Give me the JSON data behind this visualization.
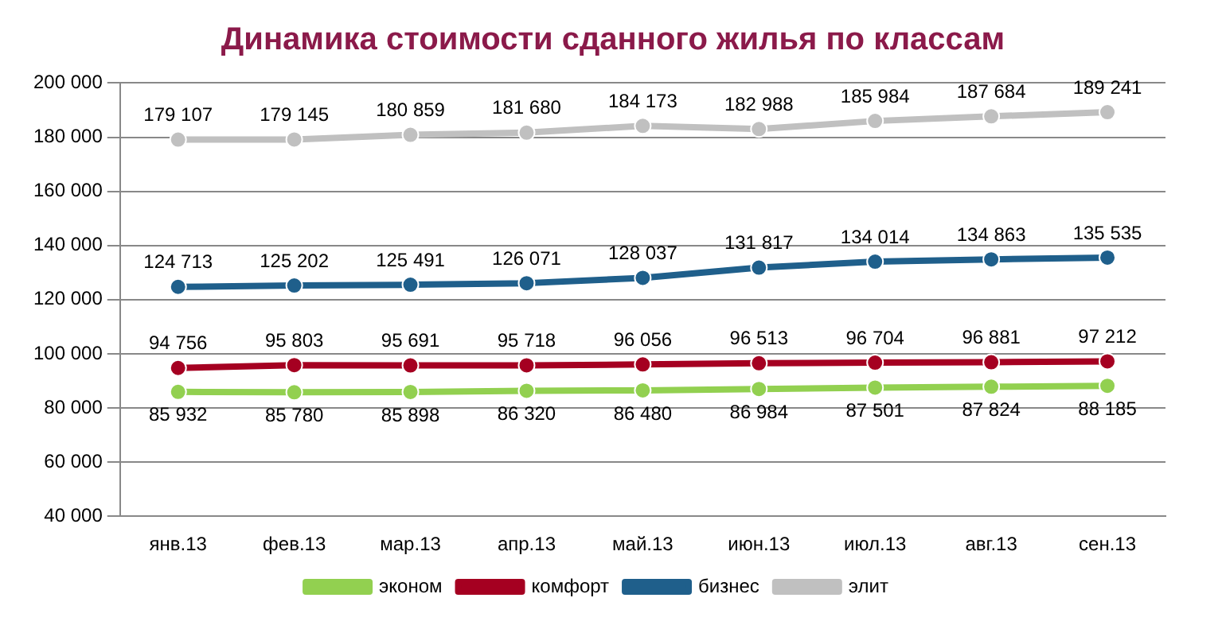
{
  "chart_data": {
    "type": "line",
    "title": "Динамика стоимости сданного жилья по классам",
    "categories": [
      "янв.13",
      "фев.13",
      "мар.13",
      "апр.13",
      "май.13",
      "июн.13",
      "июл.13",
      "авг.13",
      "сен.13"
    ],
    "series": [
      {
        "name": "эконом",
        "color": "#92d050",
        "values": [
          85932,
          85780,
          85898,
          86320,
          86480,
          86984,
          87501,
          87824,
          88185
        ],
        "value_labels": [
          "85 932",
          "85 780",
          "85 898",
          "86 320",
          "86 480",
          "86 984",
          "87 501",
          "87 824",
          "88 185"
        ]
      },
      {
        "name": "комфорт",
        "color": "#a50021",
        "values": [
          94756,
          95803,
          95691,
          95718,
          96056,
          96513,
          96704,
          96881,
          97212
        ],
        "value_labels": [
          "94 756",
          "95 803",
          "95 691",
          "95 718",
          "96 056",
          "96 513",
          "96 704",
          "96 881",
          "97 212"
        ]
      },
      {
        "name": "бизнес",
        "color": "#1f5f8b",
        "values": [
          124713,
          125202,
          125491,
          126071,
          128037,
          131817,
          134014,
          134863,
          135535
        ],
        "value_labels": [
          "124 713",
          "125 202",
          "125 491",
          "126 071",
          "128 037",
          "131 817",
          "134 014",
          "134 863",
          "135 535"
        ]
      },
      {
        "name": "элит",
        "color": "#c0c0c0",
        "values": [
          179107,
          179145,
          180859,
          181680,
          184173,
          182988,
          185984,
          187684,
          189241
        ],
        "value_labels": [
          "179 107",
          "179 145",
          "180 859",
          "181 680",
          "184 173",
          "182 988",
          "185 984",
          "187 684",
          "189 241"
        ]
      }
    ],
    "ylim": [
      40000,
      200000
    ],
    "yticks": [
      {
        "value": 40000,
        "label": "40 000"
      },
      {
        "value": 60000,
        "label": "60 000"
      },
      {
        "value": 80000,
        "label": "80 000"
      },
      {
        "value": 100000,
        "label": "100 000"
      },
      {
        "value": 120000,
        "label": "120 000"
      },
      {
        "value": 140000,
        "label": "140 000"
      },
      {
        "value": 160000,
        "label": "160 000"
      },
      {
        "value": 180000,
        "label": "180 000"
      },
      {
        "value": 200000,
        "label": "200 000"
      }
    ],
    "grid": "y",
    "legend": "bottom",
    "marker": "circle",
    "line_style": "solid"
  }
}
